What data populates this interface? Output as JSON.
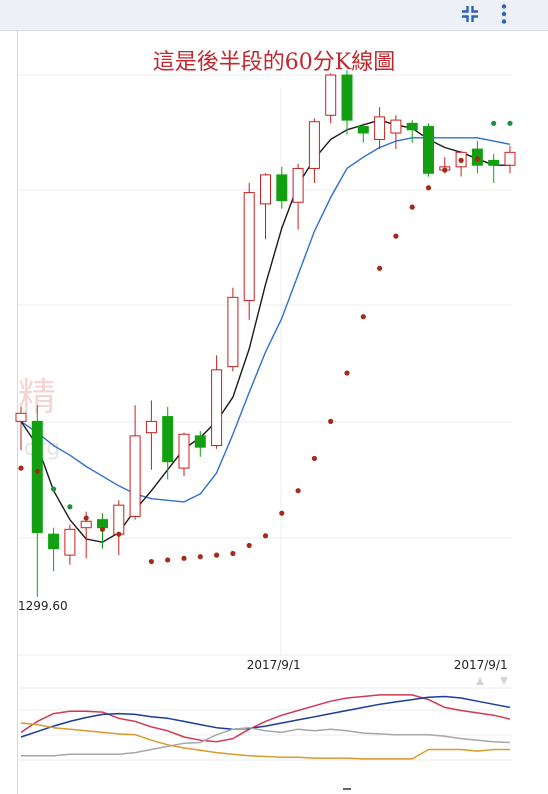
{
  "toolbar": {
    "collapse_icon": "collapse-icon",
    "menu_icon": "more-vert-icon"
  },
  "colors": {
    "up": "#c82020",
    "down": "#12a012",
    "ma5": "#1a1a1a",
    "ma10": "#2f6fd1",
    "sar_above": "#1e8f3a",
    "sar_below": "#a52a1a",
    "k_line": "#d23a52",
    "d_line": "#1a3c9c",
    "j_line": "#d99b2b",
    "extra_line": "#a7a7a7"
  },
  "chart_data": [
    {
      "type": "candlestick",
      "title": "這是後半段的60分K線圖",
      "ylim": [
        1296,
        1332
      ],
      "x_ticks": [
        {
          "index": 15.5,
          "label": "2017/9/1"
        },
        {
          "index": 28.2,
          "label": "2017/9/1"
        }
      ],
      "min_label": {
        "index": 1,
        "value": 1299.6,
        "label": "1299.60"
      },
      "candles": [
        {
          "o": 1310.5,
          "h": 1311.4,
          "l": 1308.7,
          "c": 1311.0
        },
        {
          "o": 1310.5,
          "h": 1311.5,
          "l": 1299.6,
          "c": 1303.6
        },
        {
          "o": 1303.5,
          "h": 1303.9,
          "l": 1301.2,
          "c": 1302.6
        },
        {
          "o": 1302.2,
          "h": 1304.1,
          "l": 1301.6,
          "c": 1303.8
        },
        {
          "o": 1303.9,
          "h": 1304.9,
          "l": 1302.0,
          "c": 1304.3
        },
        {
          "o": 1304.4,
          "h": 1304.8,
          "l": 1302.6,
          "c": 1303.9
        },
        {
          "o": 1303.5,
          "h": 1305.6,
          "l": 1302.2,
          "c": 1305.3
        },
        {
          "o": 1304.6,
          "h": 1311.5,
          "l": 1304.4,
          "c": 1309.6
        },
        {
          "o": 1309.8,
          "h": 1311.8,
          "l": 1307.5,
          "c": 1310.5
        },
        {
          "o": 1310.8,
          "h": 1311.4,
          "l": 1306.9,
          "c": 1308.0
        },
        {
          "o": 1307.6,
          "h": 1309.8,
          "l": 1307.1,
          "c": 1309.7
        },
        {
          "o": 1309.6,
          "h": 1309.9,
          "l": 1308.3,
          "c": 1308.9
        },
        {
          "o": 1309.0,
          "h": 1314.6,
          "l": 1308.8,
          "c": 1313.7
        },
        {
          "o": 1313.9,
          "h": 1318.8,
          "l": 1313.6,
          "c": 1318.2
        },
        {
          "o": 1318.0,
          "h": 1325.3,
          "l": 1316.8,
          "c": 1324.7
        },
        {
          "o": 1324.0,
          "h": 1325.9,
          "l": 1321.8,
          "c": 1325.8
        },
        {
          "o": 1325.8,
          "h": 1326.3,
          "l": 1323.7,
          "c": 1324.2
        },
        {
          "o": 1324.1,
          "h": 1326.5,
          "l": 1322.4,
          "c": 1326.2
        },
        {
          "o": 1326.2,
          "h": 1329.3,
          "l": 1325.3,
          "c": 1329.1
        },
        {
          "o": 1329.5,
          "h": 1332.1,
          "l": 1329.0,
          "c": 1332.0
        },
        {
          "o": 1332.0,
          "h": 1332.3,
          "l": 1328.3,
          "c": 1329.2
        },
        {
          "o": 1328.8,
          "h": 1329.0,
          "l": 1327.8,
          "c": 1328.4
        },
        {
          "o": 1328.0,
          "h": 1330.0,
          "l": 1327.4,
          "c": 1329.4
        },
        {
          "o": 1328.4,
          "h": 1329.5,
          "l": 1327.4,
          "c": 1329.2
        },
        {
          "o": 1329.0,
          "h": 1329.2,
          "l": 1327.8,
          "c": 1328.6
        },
        {
          "o": 1328.8,
          "h": 1329.0,
          "l": 1325.7,
          "c": 1325.9
        },
        {
          "o": 1326.1,
          "h": 1326.9,
          "l": 1325.9,
          "c": 1326.3
        },
        {
          "o": 1326.3,
          "h": 1327.3,
          "l": 1325.7,
          "c": 1327.2
        },
        {
          "o": 1327.4,
          "h": 1327.9,
          "l": 1325.9,
          "c": 1326.4
        },
        {
          "o": 1326.7,
          "h": 1327.1,
          "l": 1325.3,
          "c": 1326.4
        },
        {
          "o": 1326.4,
          "h": 1327.6,
          "l": 1325.9,
          "c": 1327.2
        }
      ],
      "ma5": [
        1310.5,
        1309.0,
        1306.2,
        1304.4,
        1303.2,
        1303.0,
        1303.6,
        1305.0,
        1306.2,
        1307.5,
        1308.8,
        1309.5,
        1310.5,
        1312.0,
        1315.0,
        1319.0,
        1322.5,
        1325.2,
        1326.8,
        1328.0,
        1328.6,
        1328.9,
        1329.2,
        1328.9,
        1328.7,
        1328.0,
        1327.5,
        1327.2,
        1326.8,
        1326.4,
        1326.4
      ],
      "ma10": [
        1310.5,
        1309.8,
        1309.0,
        1308.4,
        1307.7,
        1307.1,
        1306.5,
        1306.0,
        1305.7,
        1305.6,
        1305.5,
        1306.0,
        1307.3,
        1309.7,
        1312.3,
        1314.8,
        1316.9,
        1319.6,
        1322.3,
        1324.4,
        1326.2,
        1326.9,
        1327.5,
        1327.9,
        1328.1,
        1328.1,
        1328.1,
        1328.1,
        1328.1,
        1327.9,
        1327.7
      ],
      "sar": [
        1307.6,
        1307.4,
        1306.3,
        1305.2,
        1304.5,
        1303.8,
        1303.5,
        null,
        1301.8,
        1301.9,
        1302.0,
        1302.1,
        1302.2,
        1302.3,
        1302.8,
        1303.4,
        1304.8,
        1306.2,
        1308.2,
        1310.5,
        1313.5,
        1317.0,
        1320.0,
        1322.0,
        1323.8,
        1325.0,
        1326.1,
        1326.7,
        1326.8,
        1329.0,
        1329.0
      ]
    },
    {
      "type": "line",
      "x": [
        0,
        1,
        2,
        3,
        4,
        5,
        6,
        7,
        8,
        9,
        10,
        11,
        12,
        13,
        14,
        15,
        16,
        17,
        18,
        19,
        20,
        21,
        22,
        23,
        24,
        25,
        26,
        27,
        28,
        29,
        30
      ],
      "ylim": [
        0,
        100
      ],
      "series": [
        {
          "values": [
            38,
            52,
            62,
            65,
            65,
            64,
            56,
            52,
            45,
            40,
            32,
            28,
            26,
            30,
            42,
            52,
            60,
            66,
            72,
            78,
            82,
            84,
            86,
            86,
            86,
            80,
            70,
            66,
            63,
            60,
            55
          ]
        },
        {
          "values": [
            32,
            39,
            46,
            52,
            57,
            61,
            62,
            61,
            58,
            56,
            52,
            48,
            44,
            42,
            43,
            46,
            50,
            54,
            58,
            62,
            66,
            70,
            74,
            77,
            80,
            83,
            84,
            82,
            78,
            74,
            70
          ]
        },
        {
          "values": [
            50,
            48,
            44,
            42,
            40,
            38,
            36,
            35,
            28,
            22,
            18,
            15,
            12,
            10,
            8,
            7,
            6,
            6,
            5,
            5,
            5,
            4,
            4,
            4,
            4,
            16,
            16,
            16,
            14,
            16,
            16
          ]
        },
        {
          "values": [
            8,
            8,
            8,
            10,
            10,
            10,
            10,
            12,
            16,
            20,
            24,
            25,
            35,
            42,
            44,
            40,
            38,
            42,
            40,
            42,
            40,
            37,
            36,
            35,
            35,
            35,
            33,
            30,
            28,
            26,
            25
          ]
        }
      ]
    }
  ]
}
